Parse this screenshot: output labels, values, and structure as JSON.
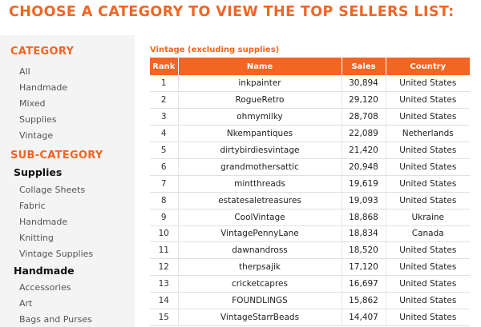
{
  "page_title": "CHOOSE A CATEGORY TO VIEW THE TOP SELLERS LIST:",
  "sidebar": {
    "category_heading": "CATEGORY",
    "categories": [
      "All",
      "Handmade",
      "Mixed",
      "Supplies",
      "Vintage"
    ],
    "subcategory_heading": "SUB-CATEGORY",
    "groups": [
      {
        "title": "Supplies",
        "items": [
          "Collage Sheets",
          "Fabric",
          "Handmade",
          "Knitting",
          "Vintage Supplies"
        ]
      },
      {
        "title": "Handmade",
        "items": [
          "Accessories",
          "Art",
          "Bags and Purses"
        ]
      }
    ]
  },
  "table": {
    "caption": "Vintage (excluding supplies)",
    "headers": [
      "Rank",
      "Name",
      "Sales",
      "Country"
    ],
    "rows": [
      [
        "1",
        "inkpainter",
        "30,894",
        "United States"
      ],
      [
        "2",
        "RogueRetro",
        "29,120",
        "United States"
      ],
      [
        "3",
        "ohmymilky",
        "28,708",
        "United States"
      ],
      [
        "4",
        "Nkempantiques",
        "22,089",
        "Netherlands"
      ],
      [
        "5",
        "dirtybirdiesvintage",
        "21,420",
        "United States"
      ],
      [
        "6",
        "grandmothersattic",
        "20,948",
        "United States"
      ],
      [
        "7",
        "mintthreads",
        "19,619",
        "United States"
      ],
      [
        "8",
        "estatesaletreasures",
        "19,093",
        "United States"
      ],
      [
        "9",
        "CoolVintage",
        "18,868",
        "Ukraine"
      ],
      [
        "10",
        "VintagePennyLane",
        "18,834",
        "Canada"
      ],
      [
        "11",
        "dawnandross",
        "18,520",
        "United States"
      ],
      [
        "12",
        "therpsajik",
        "17,120",
        "United States"
      ],
      [
        "13",
        "cricketcapres",
        "16,697",
        "United States"
      ],
      [
        "14",
        "FOUNDLINGS",
        "15,862",
        "United States"
      ],
      [
        "15",
        "VintageStarrBeads",
        "14,407",
        "United States"
      ]
    ]
  },
  "colors": {
    "accent": "#f26522",
    "sidebar_bg": "#f4f4f4"
  }
}
